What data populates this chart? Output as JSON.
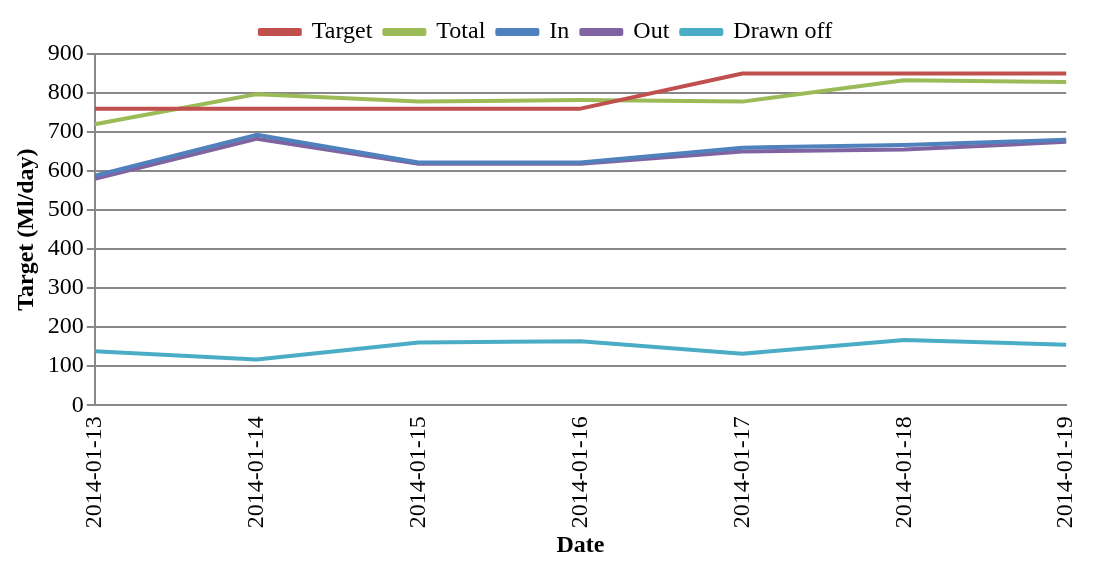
{
  "chart_data": {
    "type": "line",
    "xlabel": "Date",
    "ylabel": "Target (Ml/day)",
    "categories": [
      "2014-01-13",
      "2014-01-14",
      "2014-01-15",
      "2014-01-16",
      "2014-01-17",
      "2014-01-18",
      "2014-01-19"
    ],
    "series": [
      {
        "name": "Target",
        "color": "#c0504d",
        "values": [
          760,
          760,
          760,
          760,
          850,
          850,
          850
        ]
      },
      {
        "name": "Total",
        "color": "#9bbb59",
        "values": [
          720,
          797,
          778,
          782,
          778,
          833,
          828
        ]
      },
      {
        "name": "In",
        "color": "#4f81bd",
        "values": [
          588,
          693,
          622,
          622,
          660,
          667,
          680
        ]
      },
      {
        "name": "Out",
        "color": "#8064a2",
        "values": [
          580,
          683,
          619,
          619,
          650,
          655,
          675
        ]
      },
      {
        "name": "Drawn off",
        "color": "#4bacc6",
        "values": [
          138,
          117,
          161,
          164,
          132,
          167,
          155
        ]
      }
    ],
    "ylim": [
      0,
      900
    ],
    "yticks": [
      0,
      100,
      200,
      300,
      400,
      500,
      600,
      700,
      800,
      900
    ],
    "grid": "y",
    "legend": "top",
    "marker": "none",
    "line_style": "solid"
  }
}
